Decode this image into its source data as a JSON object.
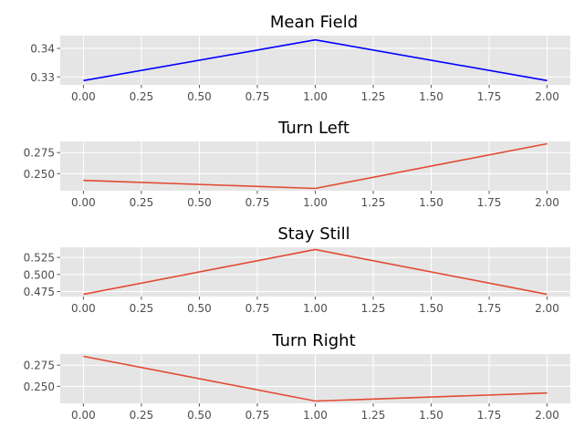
{
  "chart_data": [
    {
      "type": "line",
      "title": "Mean Field",
      "x": [
        0,
        1,
        2
      ],
      "y": [
        0.3287,
        0.343,
        0.3287
      ],
      "xlim": [
        -0.1,
        2.1
      ],
      "ylim": [
        0.3272,
        0.3445
      ],
      "xticks": [
        0,
        0.25,
        0.5,
        0.75,
        1,
        1.25,
        1.5,
        1.75,
        2
      ],
      "xtick_labels": [
        "0.00",
        "0.25",
        "0.50",
        "0.75",
        "1.00",
        "1.25",
        "1.50",
        "1.75",
        "2.00"
      ],
      "yticks": [
        0.33,
        0.34
      ],
      "ytick_labels": [
        "0.33",
        "0.34"
      ],
      "color": "#0000ff",
      "grid": true
    },
    {
      "type": "line",
      "title": "Turn Left",
      "x": [
        0,
        1,
        2
      ],
      "y": [
        0.242,
        0.2325,
        0.2855
      ],
      "xlim": [
        -0.1,
        2.1
      ],
      "ylim": [
        0.2298,
        0.2882
      ],
      "xticks": [
        0,
        0.25,
        0.5,
        0.75,
        1,
        1.25,
        1.5,
        1.75,
        2
      ],
      "xtick_labels": [
        "0.00",
        "0.25",
        "0.50",
        "0.75",
        "1.00",
        "1.25",
        "1.50",
        "1.75",
        "2.00"
      ],
      "yticks": [
        0.25,
        0.275
      ],
      "ytick_labels": [
        "0.250",
        "0.275"
      ],
      "color": "#e24a33",
      "grid": true
    },
    {
      "type": "line",
      "title": "Stay Still",
      "x": [
        0,
        1,
        2
      ],
      "y": [
        0.471,
        0.5365,
        0.471
      ],
      "xlim": [
        -0.1,
        2.1
      ],
      "ylim": [
        0.4677,
        0.5398
      ],
      "xticks": [
        0,
        0.25,
        0.5,
        0.75,
        1,
        1.25,
        1.5,
        1.75,
        2
      ],
      "xtick_labels": [
        "0.00",
        "0.25",
        "0.50",
        "0.75",
        "1.00",
        "1.25",
        "1.50",
        "1.75",
        "2.00"
      ],
      "yticks": [
        0.475,
        0.5,
        0.525
      ],
      "ytick_labels": [
        "0.475",
        "0.500",
        "0.525"
      ],
      "color": "#e24a33",
      "grid": true
    },
    {
      "type": "line",
      "title": "Turn Right",
      "x": [
        0,
        1,
        2
      ],
      "y": [
        0.2855,
        0.2325,
        0.242
      ],
      "xlim": [
        -0.1,
        2.1
      ],
      "ylim": [
        0.2298,
        0.2882
      ],
      "xticks": [
        0,
        0.25,
        0.5,
        0.75,
        1,
        1.25,
        1.5,
        1.75,
        2
      ],
      "xtick_labels": [
        "0.00",
        "0.25",
        "0.50",
        "0.75",
        "1.00",
        "1.25",
        "1.50",
        "1.75",
        "2.00"
      ],
      "yticks": [
        0.25,
        0.275
      ],
      "ytick_labels": [
        "0.250",
        "0.275"
      ],
      "color": "#e24a33",
      "grid": true
    }
  ],
  "style": {
    "axes_background": "#e5e5e5",
    "grid_color": "#ffffff",
    "tick_label_color": "#4d4d4d"
  }
}
